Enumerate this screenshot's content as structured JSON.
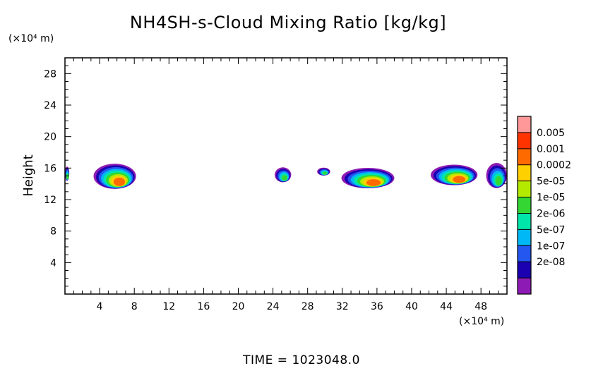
{
  "chart_data": {
    "type": "heatmap",
    "title": "NH4SH-s-Cloud Mixing Ratio [kg/kg]",
    "xlabel": "",
    "ylabel": "Height",
    "x_unit": "(×10⁴ m)",
    "y_unit": "(×10⁴ m)",
    "xlim": [
      0,
      51
    ],
    "ylim": [
      0,
      30
    ],
    "x_ticks": [
      4,
      8,
      12,
      16,
      20,
      24,
      28,
      32,
      36,
      40,
      44,
      48
    ],
    "y_ticks": [
      4,
      8,
      12,
      16,
      20,
      24,
      28
    ],
    "grid": false,
    "legend_placement": "right",
    "colorbar": {
      "levels": [
        "0.005",
        "0.001",
        "0.0002",
        "5e-05",
        "1e-05",
        "2e-06",
        "5e-07",
        "1e-07",
        "2e-08"
      ],
      "colors": [
        "#ff9999",
        "#ff3300",
        "#ff6a00",
        "#ffd000",
        "#b4ea00",
        "#33d633",
        "#00e6aa",
        "#00b8f5",
        "#2456f0",
        "#1a00b0",
        "#8e1ab5"
      ]
    },
    "cloud_regions": [
      {
        "x_range": [
          0,
          0.5
        ],
        "y_range": [
          14.3,
          16.1
        ]
      },
      {
        "x_range": [
          3.3,
          8.2
        ],
        "y_range": [
          13.2,
          16.4
        ]
      },
      {
        "x_range": [
          24.2,
          26.1
        ],
        "y_range": [
          14.1,
          16.0
        ]
      },
      {
        "x_range": [
          29.1,
          30.6
        ],
        "y_range": [
          15.0,
          16.0
        ]
      },
      {
        "x_range": [
          31.9,
          38.0
        ],
        "y_range": [
          13.3,
          15.9
        ]
      },
      {
        "x_range": [
          42.2,
          47.6
        ],
        "y_range": [
          13.7,
          16.3
        ]
      },
      {
        "x_range": [
          48.6,
          51.0
        ],
        "y_range": [
          13.3,
          16.5
        ]
      }
    ],
    "time_label": "TIME = 1023048.0"
  }
}
